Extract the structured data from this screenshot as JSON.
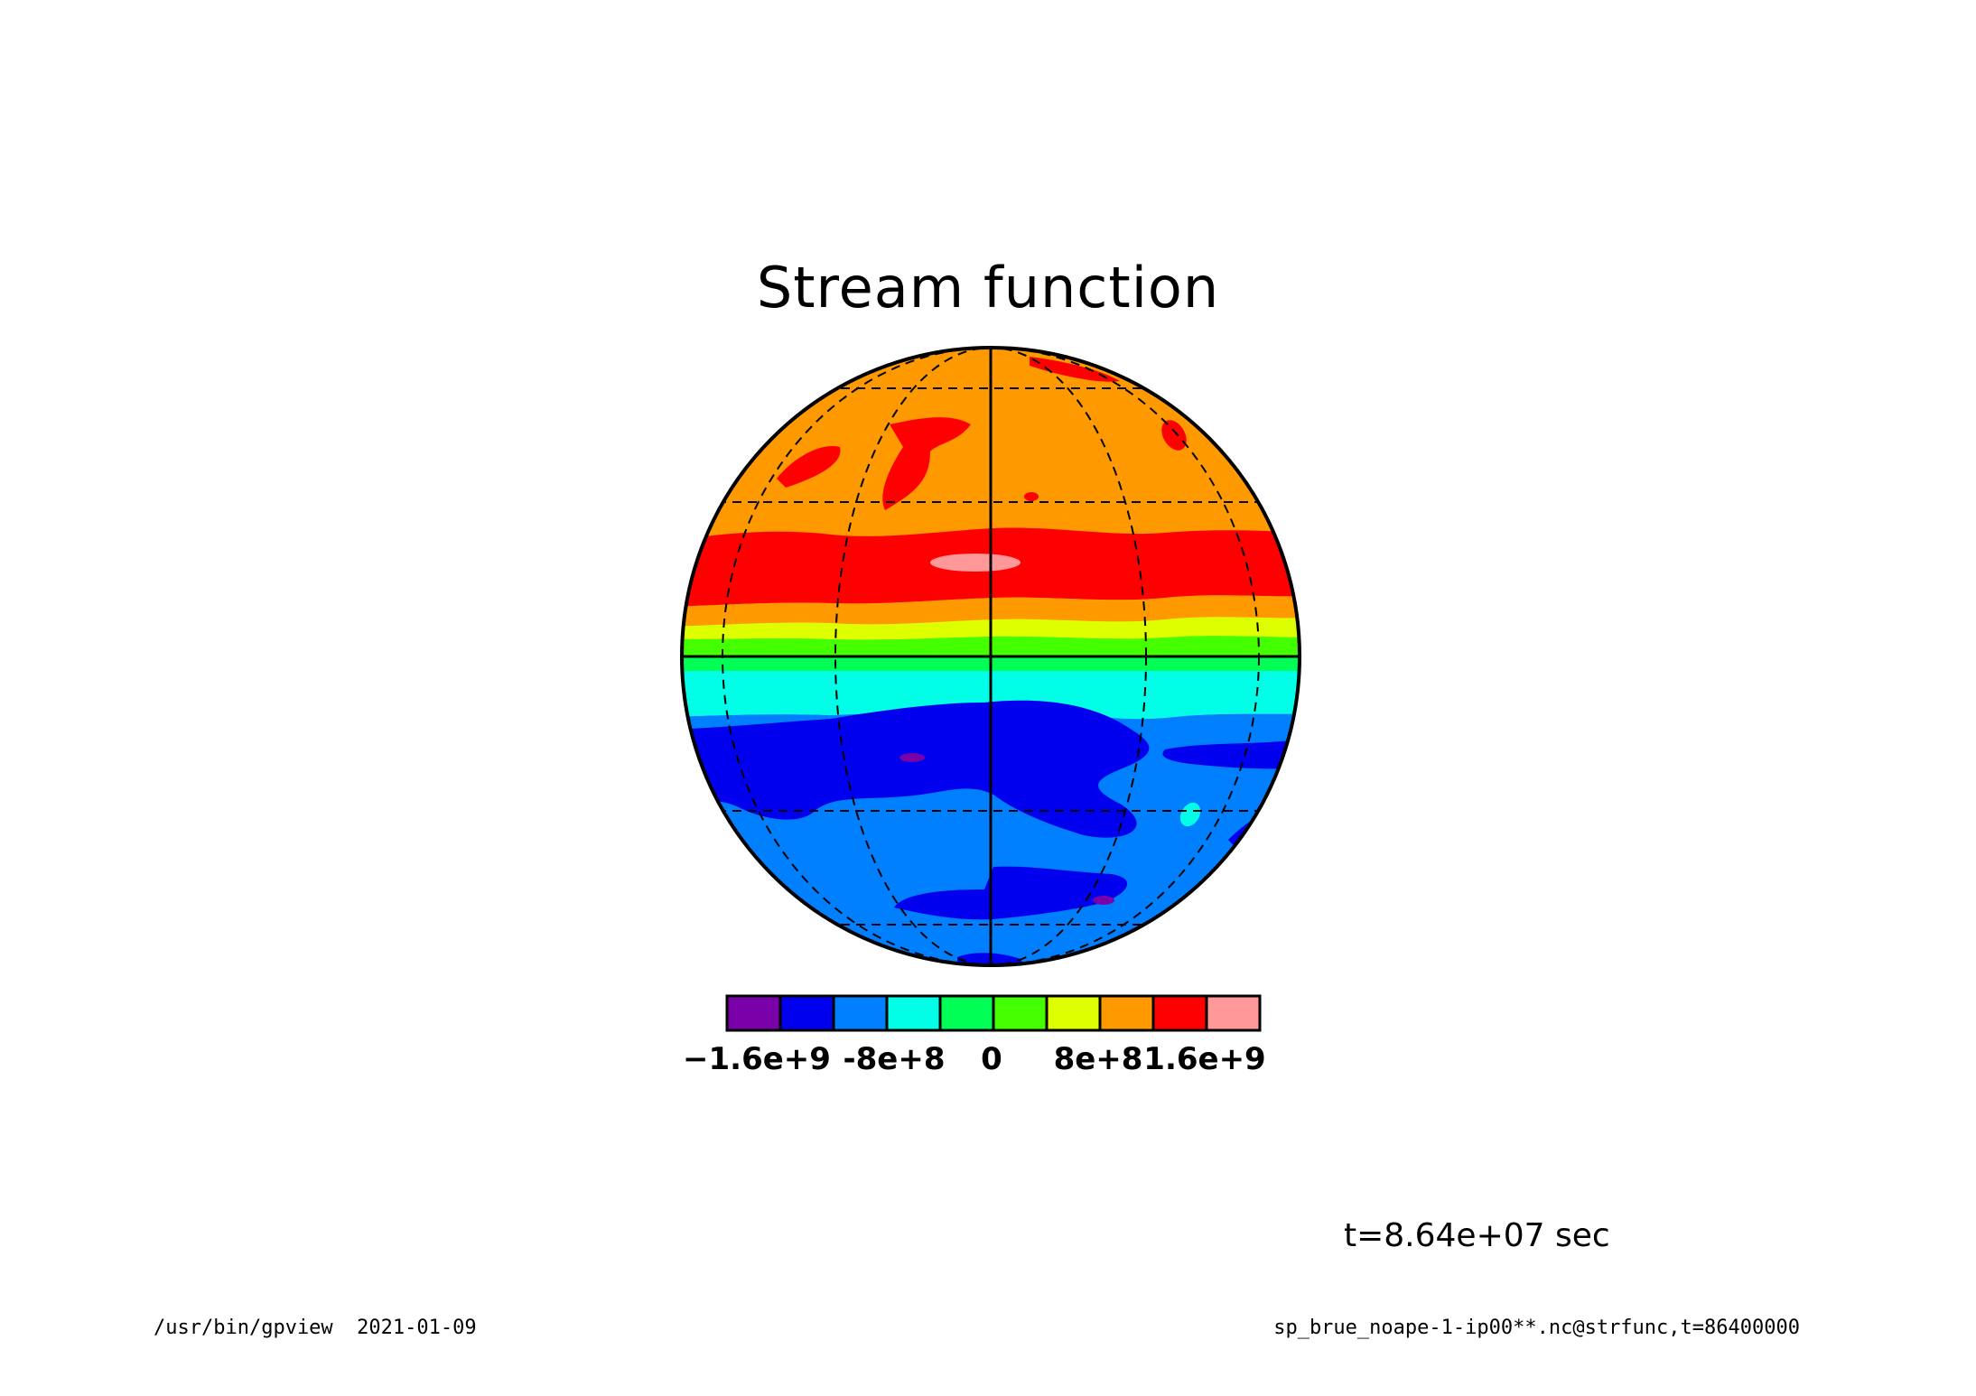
{
  "title": "Stream function",
  "colors": {
    "band_purple": "#7a00aa",
    "band_blue": "#0000ee",
    "band_mid_blue": "#0080ff",
    "band_cyan": "#00ffe6",
    "band_green": "#00ff55",
    "band_lime": "#44ff00",
    "band_yellow": "#ddff00",
    "band_orange": "#ff9900",
    "band_red": "#ff0000",
    "band_pink": "#ff9999"
  },
  "colorbar": {
    "levels": [
      "#7a00aa",
      "#0000ee",
      "#0080ff",
      "#00ffe6",
      "#00ff55",
      "#44ff00",
      "#ddff00",
      "#ff9900",
      "#ff0000",
      "#ff9999"
    ],
    "tick_labels": [
      "−1.6e+9",
      "-8e+8",
      "0",
      "8e+8",
      "1.6e+9"
    ]
  },
  "time_label": "t=8.64e+07 sec",
  "footer": {
    "left": "/usr/bin/gpview  2021-01-09",
    "right": "sp_brue_noape-1-ip00**.nc@strfunc,t=86400000"
  }
}
